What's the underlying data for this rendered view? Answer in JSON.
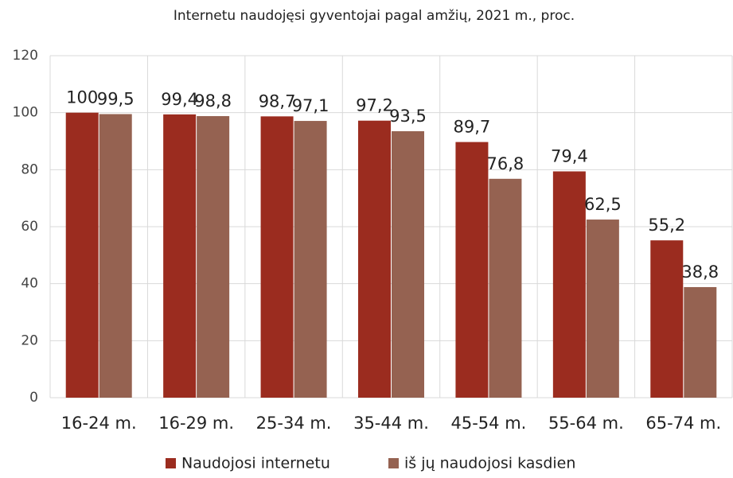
{
  "chart_data": {
    "type": "bar",
    "title": "Internetu naudojęsi gyventojai pagal amžių, 2021 m., proc.",
    "categories": [
      "16-24 m.",
      "16-29 m.",
      "25-34 m.",
      "35-44 m.",
      "45-54 m.",
      "55-64 m.",
      "65-74 m."
    ],
    "series": [
      {
        "name": "Naudojosi internetu",
        "color": "#9b2c1f",
        "values": [
          100,
          99.4,
          98.7,
          97.2,
          89.7,
          79.4,
          55.2
        ],
        "value_labels": [
          "100",
          "99,4",
          "98,7",
          "97,2",
          "89,7",
          "79,4",
          "55,2"
        ]
      },
      {
        "name": "iš jų naudojosi kasdien",
        "color": "#956251",
        "values": [
          99.5,
          98.8,
          97.1,
          93.5,
          76.8,
          62.5,
          38.8
        ],
        "value_labels": [
          "99,5",
          "98,8",
          "97,1",
          "93,5",
          "76,8",
          "62,5",
          "38,8"
        ]
      }
    ],
    "ylim": [
      0,
      120
    ],
    "yticks": [
      0,
      20,
      40,
      60,
      80,
      100,
      120
    ],
    "grid": true,
    "legend": "bottom"
  }
}
